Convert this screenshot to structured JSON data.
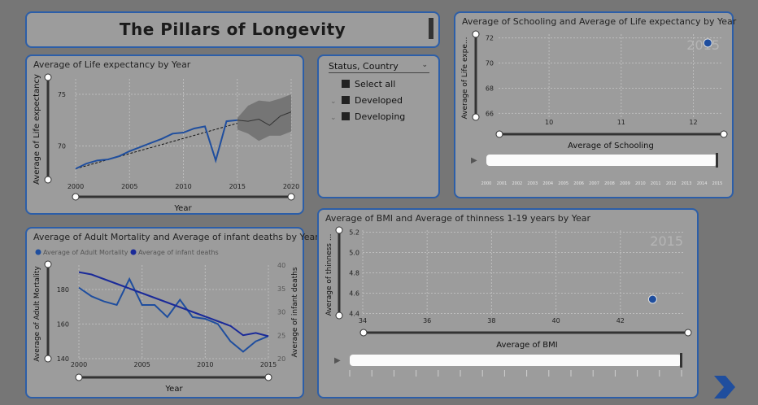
{
  "dashboard_title": "The Pillars of Longevity",
  "colors": {
    "accent": "#1f4e9e",
    "dark_blue": "#1a2a99",
    "panel": "#9c9c9c",
    "border": "#2c5ea8"
  },
  "slicer": {
    "header": "Status, Country",
    "options": [
      {
        "label": "Select all",
        "expandable": false
      },
      {
        "label": "Developed",
        "expandable": true
      },
      {
        "label": "Developing",
        "expandable": true
      }
    ]
  },
  "chart_data": [
    {
      "id": "life",
      "type": "line",
      "title": "Average of Life expectancy by Year",
      "xlabel": "Year",
      "ylabel": "Average of Life expectancy",
      "xlim": [
        2000,
        2020
      ],
      "ylim": [
        66.5,
        76.5
      ],
      "xticks": [
        2000,
        2005,
        2010,
        2015,
        2020
      ],
      "yticks": [
        70,
        75
      ],
      "series": [
        {
          "x": [
            2000,
            2001,
            2002,
            2003,
            2004,
            2005,
            2006,
            2007,
            2008,
            2009,
            2010,
            2011,
            2012,
            2013,
            2014,
            2015
          ],
          "values": [
            67.8,
            68.3,
            68.6,
            68.7,
            69.0,
            69.5,
            69.9,
            70.3,
            70.7,
            71.2,
            71.3,
            71.7,
            71.9,
            68.6,
            72.4,
            72.5
          ]
        }
      ],
      "trend": {
        "x": [
          2000,
          2015
        ],
        "values": [
          67.8,
          72.2
        ]
      },
      "forecast": {
        "x": [
          2015,
          2016,
          2017,
          2018,
          2019,
          2020
        ],
        "values": [
          72.5,
          72.4,
          72.6,
          72.0,
          72.9,
          73.3
        ],
        "upper": [
          72.7,
          73.9,
          74.4,
          74.3,
          74.6,
          75.0
        ],
        "lower": [
          71.6,
          71.2,
          70.5,
          71.0,
          71.0,
          71.4
        ]
      }
    },
    {
      "id": "mortality",
      "type": "line",
      "title": "Average of Adult Mortality and Average of infant deaths by Year",
      "xlabel": "Year",
      "ylabel": "Average of Adult Mortality",
      "y2label": "Average of infant deaths",
      "xlim": [
        2000,
        2015
      ],
      "ylim": [
        140,
        194
      ],
      "y2lim": [
        20,
        40
      ],
      "xticks": [
        2000,
        2005,
        2010,
        2015
      ],
      "yticks": [
        140,
        160,
        180
      ],
      "y2ticks": [
        20,
        25,
        30,
        35,
        40
      ],
      "series": [
        {
          "name": "Average of Adult Mortality",
          "axis": "y",
          "color": "#1f4e9e",
          "x": [
            2000,
            2001,
            2002,
            2003,
            2004,
            2005,
            2006,
            2007,
            2008,
            2009,
            2010,
            2011,
            2012,
            2013,
            2014,
            2015
          ],
          "values": [
            181,
            176,
            173,
            171,
            186,
            171,
            171,
            164,
            174,
            164,
            163,
            160,
            150,
            144,
            150,
            153
          ]
        },
        {
          "name": "Average of infant deaths",
          "axis": "y2",
          "color": "#1a2a99",
          "x": [
            2000,
            2001,
            2002,
            2003,
            2004,
            2005,
            2006,
            2007,
            2008,
            2009,
            2010,
            2011,
            2012,
            2013,
            2014,
            2015
          ],
          "values": [
            38.5,
            38.0,
            37.0,
            36.0,
            35.0,
            34.0,
            33.0,
            32.0,
            31.0,
            30.0,
            29.0,
            28.0,
            27.0,
            25.0,
            25.5,
            24.8
          ]
        }
      ]
    },
    {
      "id": "schooling",
      "type": "scatter",
      "title": "Average of Schooling and Average of Life expectancy by Year",
      "xlabel": "Average of Schooling",
      "ylabel": "Average of Life expe...",
      "xlim": [
        9.3,
        12.4
      ],
      "ylim": [
        65.7,
        72.3
      ],
      "xticks": [
        10,
        11,
        12
      ],
      "yticks": [
        66,
        68,
        70,
        72
      ],
      "play_label": "2015",
      "timeline": [
        "2000",
        "2001",
        "2002",
        "2003",
        "2004",
        "2005",
        "2006",
        "2007",
        "2008",
        "2009",
        "2010",
        "2011",
        "2012",
        "2013",
        "2014",
        "2015"
      ],
      "points": [
        {
          "x": 12.2,
          "y": 71.6
        }
      ]
    },
    {
      "id": "bmi",
      "type": "scatter",
      "title": "Average of BMI and Average of thinness 1-19 years by Year",
      "xlabel": "Average of BMI",
      "ylabel": "Average of thinness ...",
      "xlim": [
        34,
        44
      ],
      "ylim": [
        4.38,
        5.22
      ],
      "xticks": [
        34,
        36,
        38,
        40,
        42
      ],
      "yticks": [
        4.4,
        4.6,
        4.8,
        5.0,
        5.2
      ],
      "ytick_labels": [
        "4.4",
        "4.6",
        "4.8",
        "5.0",
        "5.2"
      ],
      "play_label": "2015",
      "points": [
        {
          "x": 43.0,
          "y": 4.54
        }
      ]
    }
  ]
}
